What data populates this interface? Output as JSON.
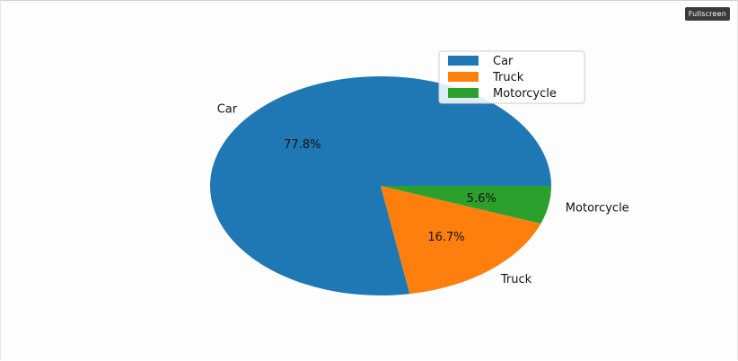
{
  "toolbar": {
    "fullscreen_label": "Fullscreen"
  },
  "chart_data": {
    "type": "pie",
    "categories": [
      "Car",
      "Truck",
      "Motorcycle"
    ],
    "values": [
      77.8,
      16.7,
      5.6
    ],
    "percent_labels": [
      "77.8%",
      "16.7%",
      "5.6%"
    ],
    "colors": [
      "#1f77b4",
      "#ff7f0e",
      "#2ca02c"
    ],
    "start_angle": 0,
    "direction": "counterclockwise",
    "legend": {
      "entries": [
        "Car",
        "Truck",
        "Motorcycle"
      ],
      "placement": "upper-right"
    }
  }
}
